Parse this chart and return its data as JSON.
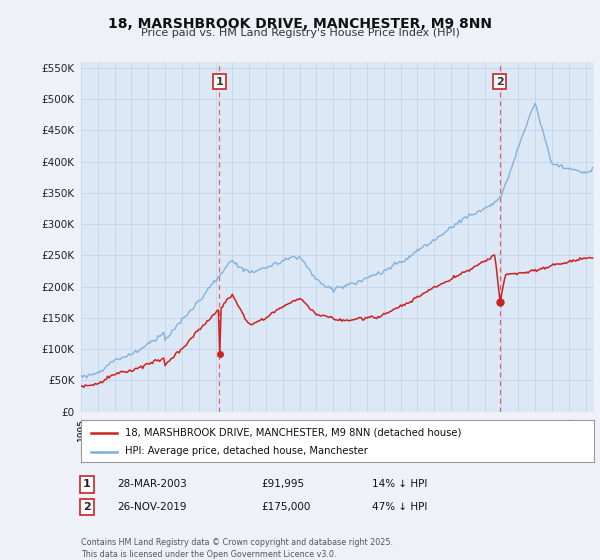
{
  "title": "18, MARSHBROOK DRIVE, MANCHESTER, M9 8NN",
  "subtitle": "Price paid vs. HM Land Registry's House Price Index (HPI)",
  "background_color": "#eef2f8",
  "plot_bg_color": "#dce8f5",
  "ylim": [
    0,
    560000
  ],
  "yticks": [
    0,
    50000,
    100000,
    150000,
    200000,
    250000,
    300000,
    350000,
    400000,
    450000,
    500000,
    550000
  ],
  "annotation1": {
    "label": "1",
    "date": "28-MAR-2003",
    "price": "£91,995",
    "note": "14% ↓ HPI"
  },
  "annotation2": {
    "label": "2",
    "date": "26-NOV-2019",
    "price": "£175,000",
    "note": "47% ↓ HPI"
  },
  "legend_line1": "18, MARSHBROOK DRIVE, MANCHESTER, M9 8NN (detached house)",
  "legend_line2": "HPI: Average price, detached house, Manchester",
  "footer": "Contains HM Land Registry data © Crown copyright and database right 2025.\nThis data is licensed under the Open Government Licence v3.0.",
  "red_color": "#cc2222",
  "blue_color": "#7aaddc",
  "vline_color": "#dd4444",
  "grid_color": "#c8d8ec",
  "sale1_year": 2003.23,
  "sale2_year": 2019.9
}
